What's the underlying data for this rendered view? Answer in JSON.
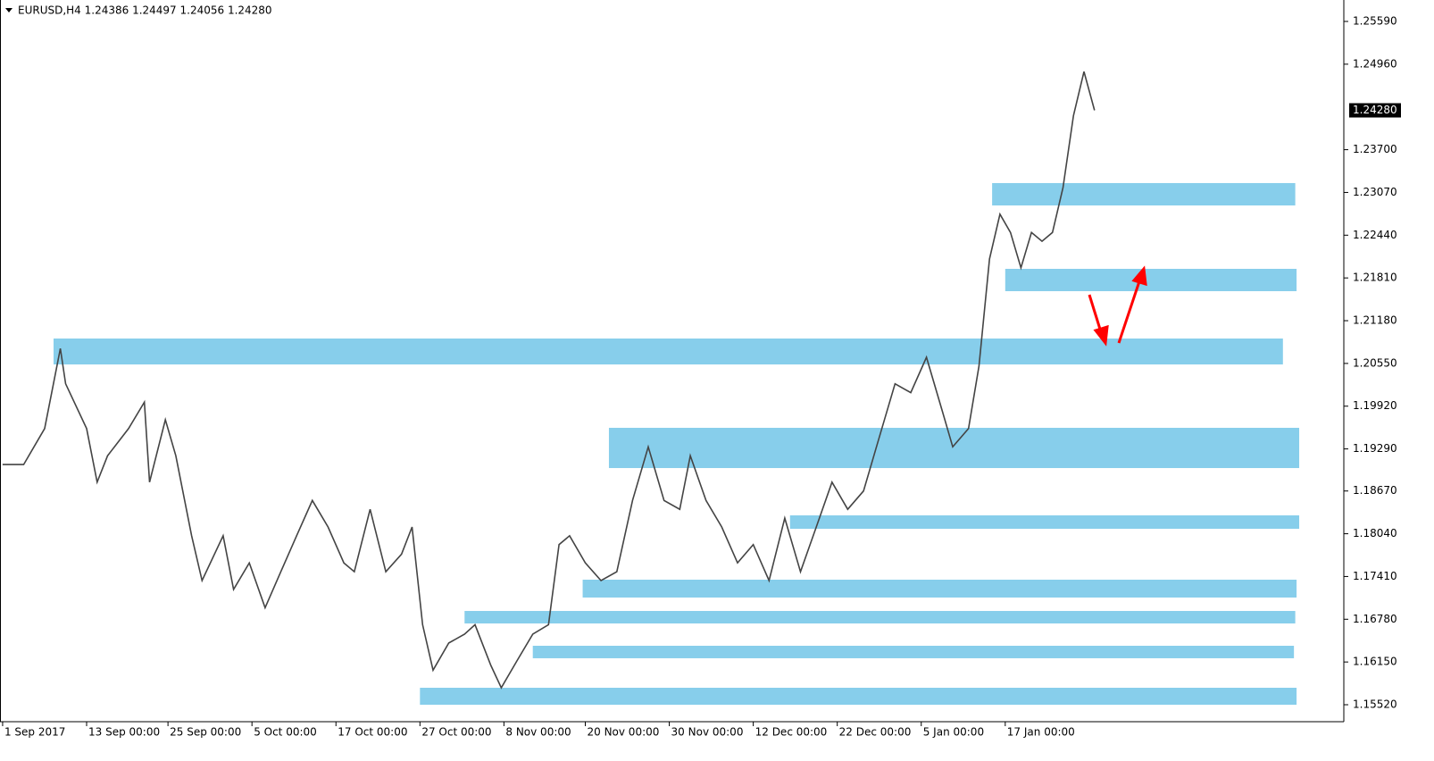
{
  "chart_data": {
    "type": "line",
    "title": "EURUSD,H4  1.24386 1.24497 1.24056 1.24280",
    "xlim": [
      -1,
      511
    ],
    "ylim": [
      1.1527,
      1.25906
    ],
    "xticks": [
      {
        "value": 0,
        "label": "1 Sep 2017"
      },
      {
        "value": 32,
        "label": "13 Sep 00:00"
      },
      {
        "value": 63,
        "label": "25 Sep 00:00"
      },
      {
        "value": 95,
        "label": "5 Oct 00:00"
      },
      {
        "value": 127,
        "label": "17 Oct 00:00"
      },
      {
        "value": 159,
        "label": "27 Oct 00:00"
      },
      {
        "value": 191,
        "label": "8 Nov 00:00"
      },
      {
        "value": 222,
        "label": "20 Nov 00:00"
      },
      {
        "value": 254,
        "label": "30 Nov 00:00"
      },
      {
        "value": 286,
        "label": "12 Dec 00:00"
      },
      {
        "value": 318,
        "label": "22 Dec 00:00"
      },
      {
        "value": 350,
        "label": "5 Jan 00:00"
      },
      {
        "value": 382,
        "label": "17 Jan 00:00"
      }
    ],
    "yticks": [
      {
        "value": 1.2559,
        "label": "1.25590"
      },
      {
        "value": 1.2496,
        "label": "1.24960"
      },
      {
        "value": 1.237,
        "label": "1.23700"
      },
      {
        "value": 1.2307,
        "label": "1.23070"
      },
      {
        "value": 1.2244,
        "label": "1.22440"
      },
      {
        "value": 1.2181,
        "label": "1.21810"
      },
      {
        "value": 1.2118,
        "label": "1.21180"
      },
      {
        "value": 1.2055,
        "label": "1.20550"
      },
      {
        "value": 1.1992,
        "label": "1.19920"
      },
      {
        "value": 1.1929,
        "label": "1.19290"
      },
      {
        "value": 1.1867,
        "label": "1.18670"
      },
      {
        "value": 1.1804,
        "label": "1.18040"
      },
      {
        "value": 1.1741,
        "label": "1.17410"
      },
      {
        "value": 1.1678,
        "label": "1.16780"
      },
      {
        "value": 1.1615,
        "label": "1.16150"
      },
      {
        "value": 1.1552,
        "label": "1.15520"
      }
    ],
    "last_price": {
      "value": 1.2428,
      "label": "1.24280"
    },
    "series": [
      {
        "color": "#444444",
        "x": [
          0,
          8,
          16,
          22,
          24,
          32,
          36,
          40,
          48,
          54,
          56,
          62,
          66,
          72,
          76,
          84,
          88,
          94,
          100,
          106,
          112,
          118,
          124,
          130,
          134,
          140,
          146,
          152,
          156,
          160,
          164,
          170,
          176,
          180,
          186,
          190,
          196,
          202,
          208,
          212,
          216,
          222,
          228,
          234,
          240,
          246,
          252,
          258,
          262,
          268,
          274,
          280,
          286,
          292,
          298,
          304,
          310,
          316,
          322,
          328,
          334,
          340,
          346,
          352,
          358,
          362,
          368,
          372,
          376,
          380,
          384,
          388,
          392,
          396,
          400,
          404,
          408,
          412,
          416
        ],
        "values": [
          1.1906,
          1.1906,
          1.1959,
          1.2077,
          1.2025,
          1.1959,
          1.188,
          1.1919,
          1.1959,
          1.1998,
          1.188,
          1.1972,
          1.1919,
          1.1801,
          1.1735,
          1.1801,
          1.1722,
          1.1761,
          1.1695,
          1.1748,
          1.1801,
          1.1853,
          1.1814,
          1.1761,
          1.1748,
          1.184,
          1.1748,
          1.1774,
          1.1814,
          1.167,
          1.1603,
          1.1643,
          1.1656,
          1.167,
          1.161,
          1.1577,
          1.1617,
          1.1656,
          1.167,
          1.1788,
          1.1801,
          1.1761,
          1.1735,
          1.1748,
          1.1853,
          1.1932,
          1.1853,
          1.184,
          1.1919,
          1.1853,
          1.1814,
          1.1761,
          1.1788,
          1.1735,
          1.1827,
          1.1748,
          1.1814,
          1.188,
          1.184,
          1.1867,
          1.1946,
          1.2025,
          1.2012,
          1.2064,
          1.1985,
          1.1932,
          1.1959,
          1.2051,
          1.2209,
          1.2275,
          1.2248,
          1.2196,
          1.2248,
          1.2235,
          1.2248,
          1.2314,
          1.242,
          1.2485,
          1.2428
        ]
      }
    ],
    "zone_color": "#87ceeb",
    "zones": [
      {
        "x": [
          19.4,
          487.8
        ],
        "y": [
          1.20535,
          1.20917
        ]
      },
      {
        "x": [
          231,
          494
        ],
        "y": [
          1.19008,
          1.19601
        ]
      },
      {
        "x": [
          377,
          492.5
        ],
        "y": [
          1.22878,
          1.23208
        ]
      },
      {
        "x": [
          382,
          493
        ],
        "y": [
          1.21615,
          1.21944
        ]
      },
      {
        "x": [
          300,
          494
        ],
        "y": [
          1.18113,
          1.18311
        ]
      },
      {
        "x": [
          221,
          493
        ],
        "y": [
          1.171,
          1.17363
        ]
      },
      {
        "x": [
          176,
          492.5
        ],
        "y": [
          1.16718,
          1.16902
        ]
      },
      {
        "x": [
          202,
          492
        ],
        "y": [
          1.16205,
          1.16389
        ]
      },
      {
        "x": [
          159,
          493
        ],
        "y": [
          1.1552,
          1.1577
        ]
      }
    ]
  }
}
